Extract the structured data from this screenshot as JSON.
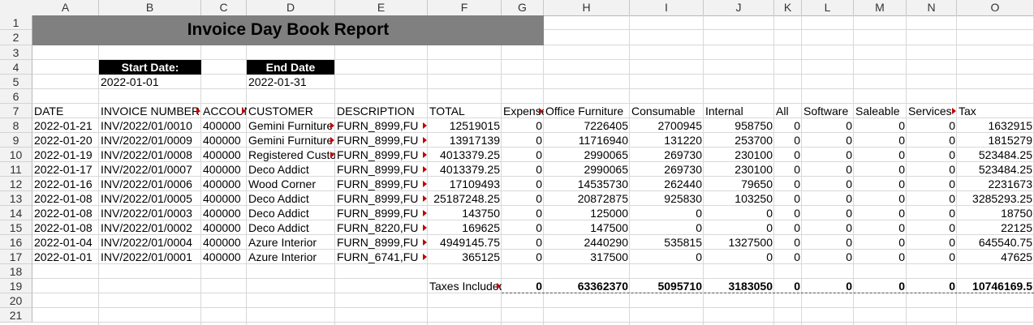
{
  "columns": [
    "A",
    "B",
    "C",
    "D",
    "E",
    "F",
    "G",
    "H",
    "I",
    "J",
    "K",
    "L",
    "M",
    "N",
    "O"
  ],
  "rows": [
    "1",
    "2",
    "3",
    "4",
    "5",
    "6",
    "7",
    "8",
    "9",
    "10",
    "11",
    "12",
    "13",
    "14",
    "15",
    "16",
    "17",
    "18",
    "19",
    "20",
    "21"
  ],
  "report": {
    "title": "Invoice Day Book Report",
    "start_label": "Start Date:",
    "start_value": "2022-01-01",
    "end_label": "End Date",
    "end_value": "2022-01-31"
  },
  "headers": [
    "DATE",
    "INVOICE NUMBER",
    "ACCOUNT",
    "CUSTOMER",
    "DESCRIPTION",
    "TOTAL",
    "Expenses",
    "Office Furniture",
    "Consumable",
    "Internal",
    "All",
    "Software",
    "Saleable",
    "Services",
    "Tax"
  ],
  "data_rows": [
    [
      "2022-01-21",
      "INV/2022/01/0010",
      "400000",
      "Gemini Furniture",
      "FURN_8999,FU",
      "12519015",
      "0",
      "7226405",
      "2700945",
      "958750",
      "0",
      "0",
      "0",
      "0",
      "1632915"
    ],
    [
      "2022-01-20",
      "INV/2022/01/0009",
      "400000",
      "Gemini Furniture",
      "FURN_8999,FU",
      "13917139",
      "0",
      "11716940",
      "131220",
      "253700",
      "0",
      "0",
      "0",
      "0",
      "1815279"
    ],
    [
      "2022-01-19",
      "INV/2022/01/0008",
      "400000",
      "Registered Customer",
      "FURN_8999,FU",
      "4013379.25",
      "0",
      "2990065",
      "269730",
      "230100",
      "0",
      "0",
      "0",
      "0",
      "523484.25"
    ],
    [
      "2022-01-17",
      "INV/2022/01/0007",
      "400000",
      "Deco Addict",
      "FURN_8999,FU",
      "4013379.25",
      "0",
      "2990065",
      "269730",
      "230100",
      "0",
      "0",
      "0",
      "0",
      "523484.25"
    ],
    [
      "2022-01-16",
      "INV/2022/01/0006",
      "400000",
      "Wood Corner",
      "FURN_8999,FU",
      "17109493",
      "0",
      "14535730",
      "262440",
      "79650",
      "0",
      "0",
      "0",
      "0",
      "2231673"
    ],
    [
      "2022-01-08",
      "INV/2022/01/0005",
      "400000",
      "Deco Addict",
      "FURN_8999,FU",
      "25187248.25",
      "0",
      "20872875",
      "925830",
      "103250",
      "0",
      "0",
      "0",
      "0",
      "3285293.25"
    ],
    [
      "2022-01-08",
      "INV/2022/01/0003",
      "400000",
      "Deco Addict",
      "FURN_8999,FU",
      "143750",
      "0",
      "125000",
      "0",
      "0",
      "0",
      "0",
      "0",
      "0",
      "18750"
    ],
    [
      "2022-01-08",
      "INV/2022/01/0002",
      "400000",
      "Deco Addict",
      "FURN_8220,FU",
      "169625",
      "0",
      "147500",
      "0",
      "0",
      "0",
      "0",
      "0",
      "0",
      "22125"
    ],
    [
      "2022-01-04",
      "INV/2022/01/0004",
      "400000",
      "Azure Interior",
      "FURN_8999,FU",
      "4949145.75",
      "0",
      "2440290",
      "535815",
      "1327500",
      "0",
      "0",
      "0",
      "0",
      "645540.75"
    ],
    [
      "2022-01-01",
      "INV/2022/01/0001",
      "400000",
      "Azure Interior",
      "FURN_6741,FU",
      "365125",
      "0",
      "317500",
      "0",
      "0",
      "0",
      "0",
      "0",
      "0",
      "47625"
    ]
  ],
  "totals": {
    "label": "Taxes Included",
    "values": [
      "0",
      "63362370",
      "5095710",
      "3183050",
      "0",
      "0",
      "0",
      "0",
      "10746169.5"
    ]
  }
}
